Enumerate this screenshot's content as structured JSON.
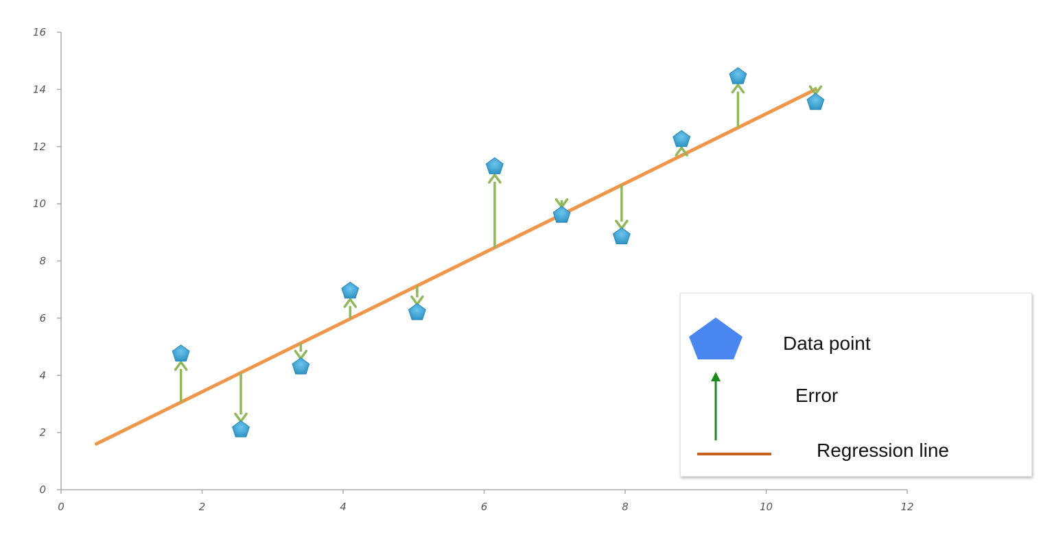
{
  "chart_data": {
    "type": "scatter",
    "xlim": [
      0,
      12
    ],
    "ylim": [
      0,
      16
    ],
    "xticks": [
      0,
      2,
      4,
      6,
      8,
      10,
      12
    ],
    "yticks": [
      0,
      2,
      4,
      6,
      8,
      10,
      12,
      14,
      16
    ],
    "grid": false,
    "legend_position": "bottom-right",
    "points": [
      {
        "x": 1.7,
        "y": 4.75
      },
      {
        "x": 2.55,
        "y": 2.1
      },
      {
        "x": 3.4,
        "y": 4.3
      },
      {
        "x": 4.1,
        "y": 6.95
      },
      {
        "x": 5.05,
        "y": 6.2
      },
      {
        "x": 6.15,
        "y": 11.3
      },
      {
        "x": 7.1,
        "y": 9.6
      },
      {
        "x": 7.95,
        "y": 8.85
      },
      {
        "x": 8.8,
        "y": 12.25
      },
      {
        "x": 9.6,
        "y": 14.45
      },
      {
        "x": 10.7,
        "y": 13.55
      }
    ],
    "regression_line": {
      "x": [
        0.5,
        10.7
      ],
      "y": [
        1.6,
        14.0
      ]
    },
    "colors": {
      "point": "#3ba3d4",
      "error": "#8fb85a",
      "regression": "#f0964a",
      "legend_point": "#4a86f0",
      "legend_error": "#1a8a1a",
      "legend_line": "#c8601e",
      "axis": "#aaaaaa"
    },
    "legend": [
      {
        "label": "Data point",
        "icon": "pentagon-icon"
      },
      {
        "label": "Error",
        "icon": "arrow-up-icon"
      },
      {
        "label": "Regression line",
        "icon": "line-icon"
      }
    ]
  }
}
